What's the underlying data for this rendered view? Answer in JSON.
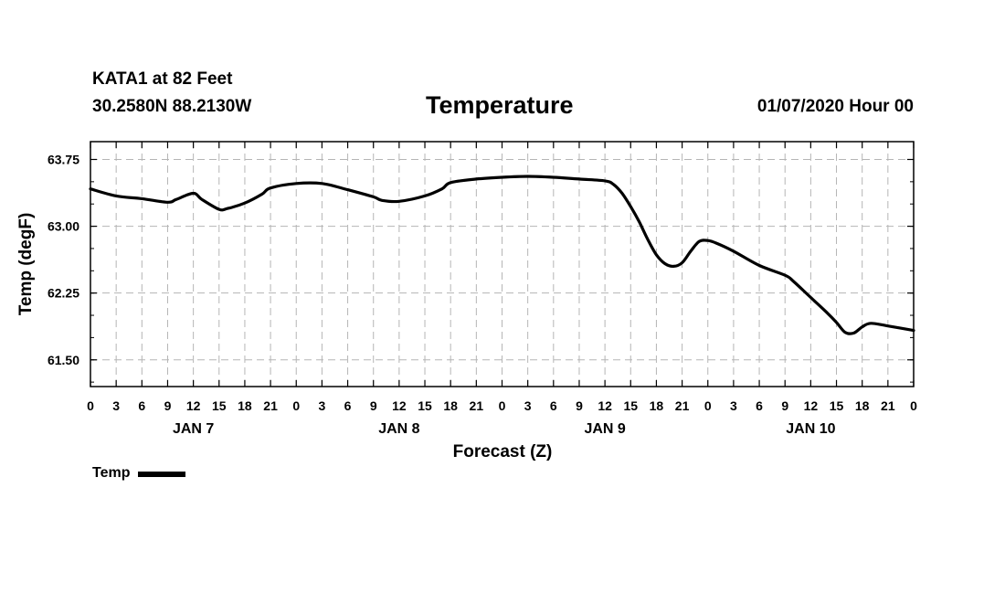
{
  "header": {
    "station": "KATA1 at 82 Feet",
    "coords": "30.2580N 88.2130W",
    "date": "01/07/2020 Hour 00"
  },
  "legend": {
    "label": "Temp",
    "color": "#000000"
  },
  "chart_data": {
    "type": "line",
    "title": "Temperature",
    "xlabel": "Forecast (Z)",
    "ylabel": "Temp (degF)",
    "x_range_hours": [
      0,
      96
    ],
    "ylim": [
      61.2,
      63.95
    ],
    "y_ticks": [
      "63.75",
      "63.00",
      "62.25",
      "61.50"
    ],
    "y_tick_values": [
      63.75,
      63.0,
      62.25,
      61.5
    ],
    "x_tick_labels": [
      "0",
      "3",
      "6",
      "9",
      "12",
      "15",
      "18",
      "21",
      "0",
      "3",
      "6",
      "9",
      "12",
      "15",
      "18",
      "21",
      "0",
      "3",
      "6",
      "9",
      "12",
      "15",
      "18",
      "21",
      "0",
      "3",
      "6",
      "9",
      "12",
      "15",
      "18",
      "21",
      "0"
    ],
    "day_labels": [
      {
        "label": "JAN 7",
        "hour": 12
      },
      {
        "label": "JAN 8",
        "hour": 36
      },
      {
        "label": "JAN 9",
        "hour": 60
      },
      {
        "label": "JAN 10",
        "hour": 84
      }
    ],
    "grid": true,
    "series": [
      {
        "name": "Temp",
        "x": [
          0,
          3,
          6,
          9,
          10,
          12,
          13,
          15,
          16,
          18,
          20,
          21,
          24,
          27,
          30,
          33,
          34,
          36,
          39,
          41,
          42,
          45,
          48,
          51,
          54,
          57,
          60,
          61,
          62,
          63,
          64,
          65,
          66,
          67,
          68,
          69,
          70,
          71,
          72,
          73,
          75,
          78,
          81,
          82,
          84,
          86,
          87,
          88,
          89,
          90,
          91,
          93,
          96
        ],
        "values": [
          63.42,
          63.34,
          63.31,
          63.27,
          63.3,
          63.37,
          63.3,
          63.19,
          63.2,
          63.26,
          63.36,
          63.43,
          63.48,
          63.48,
          63.41,
          63.33,
          63.29,
          63.28,
          63.34,
          63.42,
          63.49,
          63.53,
          63.55,
          63.56,
          63.55,
          63.53,
          63.51,
          63.47,
          63.37,
          63.22,
          63.05,
          62.85,
          62.68,
          62.58,
          62.55,
          62.59,
          62.72,
          62.83,
          62.84,
          62.81,
          62.72,
          62.56,
          62.45,
          62.38,
          62.2,
          62.02,
          61.92,
          61.81,
          61.8,
          61.87,
          61.91,
          61.88,
          61.83
        ]
      }
    ]
  }
}
